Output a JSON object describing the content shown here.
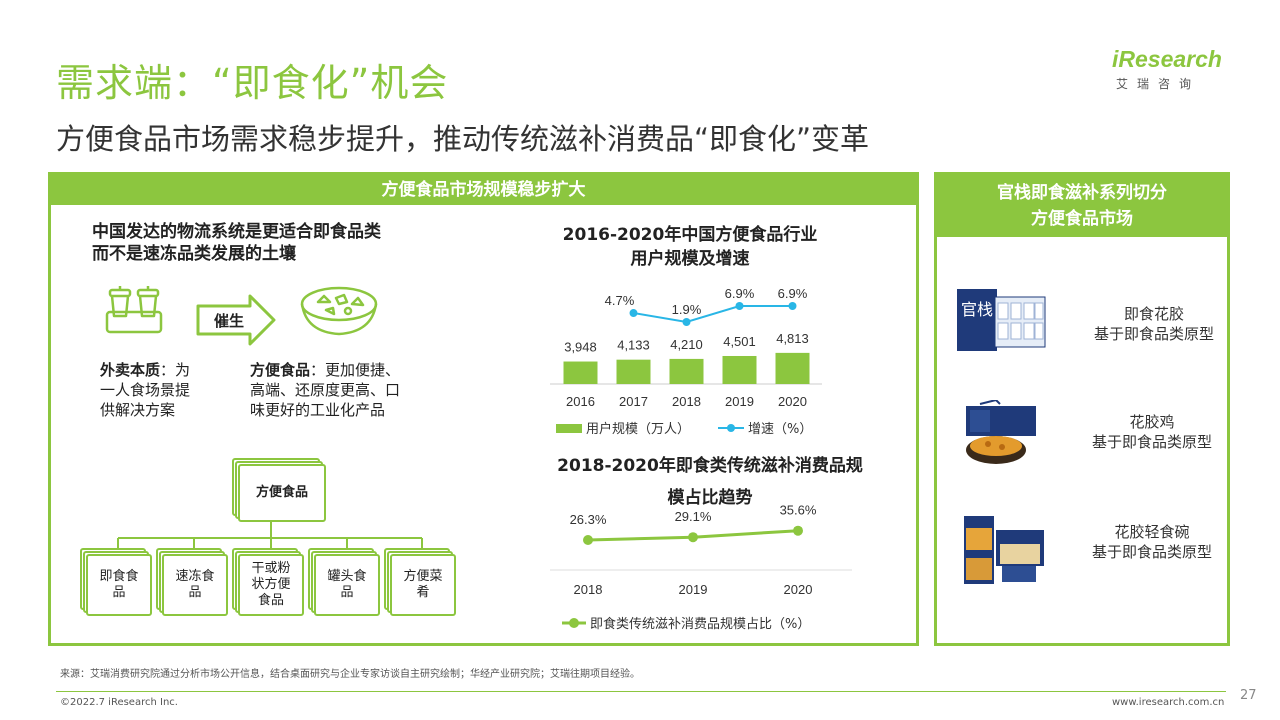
{
  "header": {
    "title": "需求端：“即食化”机会",
    "subtitle": "方便食品市场需求稳步提升，推动传统滋补消费品“即食化”变革"
  },
  "logo": {
    "text": "iResearch",
    "sub": "艾瑞咨询"
  },
  "left_panel": {
    "heading": "方便食品市场规模稳步扩大",
    "intro": [
      "中国发达的物流系统是更适合即食品类",
      "而不是速冻品类发展的土壤"
    ],
    "arrow_label": "催生",
    "takeout_bold": "外卖本质",
    "takeout_text_lines": [
      "：为",
      "一人食场景提",
      "供解决方案"
    ],
    "convenience_bold": "方便食品",
    "convenience_text_lines": [
      "：更加便捷、",
      "高端、还原度更高、口",
      "味更好的工业化产品"
    ],
    "tree_root": "方便食品",
    "tree_children": [
      [
        "即食食",
        "品"
      ],
      [
        "速冻食",
        "品"
      ],
      [
        "干或粉",
        "状方便",
        "食品"
      ],
      [
        "罐头食",
        "品"
      ],
      [
        "方便菜",
        "肴"
      ]
    ]
  },
  "chart1_title": [
    "2016-2020年中国方便食品行业",
    "用户规模及增速"
  ],
  "chart2_title": [
    "2018-2020年即食类传统滋补消费品规",
    "模占比趋势"
  ],
  "chart_data": [
    {
      "type": "bar",
      "title": "2016-2020年中国方便食品行业用户规模及增速",
      "categories": [
        "2016",
        "2017",
        "2018",
        "2019",
        "2020"
      ],
      "series": [
        {
          "name": "用户规模（万人）",
          "values": [
            3948,
            4133,
            4210,
            4501,
            4813
          ],
          "labels": [
            "3,948",
            "4,133",
            "4,210",
            "4,501",
            "4,813"
          ],
          "color": "#8cc63f"
        },
        {
          "name": "增速（%）",
          "type": "line",
          "values": [
            null,
            4.7,
            1.9,
            6.9,
            6.9
          ],
          "labels": [
            "",
            "4.7%",
            "1.9%",
            "6.9%",
            "6.9%"
          ],
          "color": "#29b6e6"
        }
      ]
    },
    {
      "type": "line",
      "title": "2018-2020年即食类传统滋补消费品规模占比趋势",
      "categories": [
        "2018",
        "2019",
        "2020"
      ],
      "series": [
        {
          "name": "即食类传统滋补消费品规模占比（%）",
          "values": [
            26.3,
            29.1,
            35.6
          ],
          "labels": [
            "26.3%",
            "29.1%",
            "35.6%"
          ],
          "color": "#8cc63f"
        }
      ]
    }
  ],
  "right_panel": {
    "heading_lines": [
      "官栈即食滋补系列切分",
      "方便食品市场"
    ],
    "products": [
      {
        "name": "即食花胶",
        "desc": "基于即食品类原型"
      },
      {
        "name": "花胶鸡",
        "desc": "基于即食品类原型"
      },
      {
        "name": "花胶轻食碗",
        "desc": "基于即食品类原型"
      }
    ],
    "brand_text": "官栈"
  },
  "footer": {
    "source": "来源：艾瑞消费研究院通过分析市场公开信息，结合桌面研究与企业专家访谈自主研究绘制；华经产业研究院；艾瑞往期项目经验。",
    "copyright": "©2022.7 iResearch Inc.",
    "url": "www.iresearch.com.cn",
    "page": "27"
  }
}
